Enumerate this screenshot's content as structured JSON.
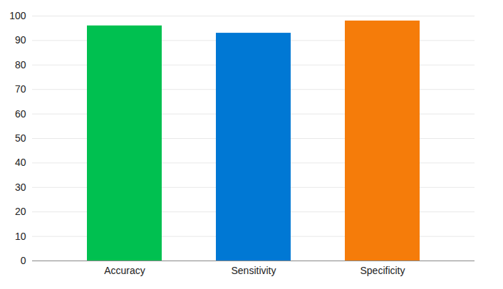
{
  "chart_data": {
    "type": "bar",
    "categories": [
      "Accuracy",
      "Sensitivity",
      "Specificity"
    ],
    "values": [
      96,
      93,
      98
    ],
    "colors": [
      "#00c050",
      "#0078d4",
      "#f57c0a"
    ],
    "ylim": [
      0,
      100
    ],
    "yticks": [
      0,
      10,
      20,
      30,
      40,
      50,
      60,
      70,
      80,
      90,
      100
    ],
    "grid": true
  }
}
